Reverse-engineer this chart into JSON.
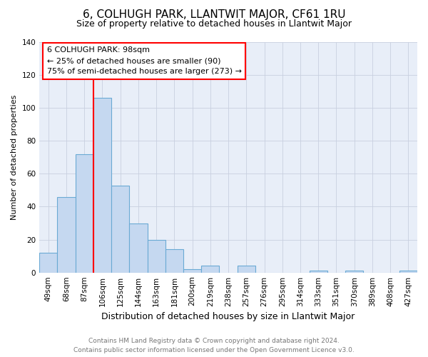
{
  "title": "6, COLHUGH PARK, LLANTWIT MAJOR, CF61 1RU",
  "subtitle": "Size of property relative to detached houses in Llantwit Major",
  "xlabel": "Distribution of detached houses by size in Llantwit Major",
  "ylabel": "Number of detached properties",
  "categories": [
    "49sqm",
    "68sqm",
    "87sqm",
    "106sqm",
    "125sqm",
    "144sqm",
    "163sqm",
    "181sqm",
    "200sqm",
    "219sqm",
    "238sqm",
    "257sqm",
    "276sqm",
    "295sqm",
    "314sqm",
    "333sqm",
    "351sqm",
    "370sqm",
    "389sqm",
    "408sqm",
    "427sqm"
  ],
  "values": [
    12,
    46,
    72,
    106,
    53,
    30,
    20,
    14,
    2,
    4,
    0,
    4,
    0,
    0,
    0,
    1,
    0,
    1,
    0,
    0,
    1
  ],
  "bar_color": "#c5d8f0",
  "bar_edge_color": "#6aaad4",
  "annotation_line1": "6 COLHUGH PARK: 98sqm",
  "annotation_line2": "← 25% of detached houses are smaller (90)",
  "annotation_line3": "75% of semi-detached houses are larger (273) →",
  "footer_line1": "Contains HM Land Registry data © Crown copyright and database right 2024.",
  "footer_line2": "Contains public sector information licensed under the Open Government Licence v3.0.",
  "ylim": [
    0,
    140
  ],
  "yticks": [
    0,
    20,
    40,
    60,
    80,
    100,
    120,
    140
  ],
  "plot_bg_color": "#e8eef8",
  "fig_bg_color": "#ffffff",
  "grid_color": "#c8d0e0",
  "title_fontsize": 11,
  "subtitle_fontsize": 9,
  "xlabel_fontsize": 9,
  "ylabel_fontsize": 8,
  "tick_fontsize": 7.5,
  "annotation_fontsize": 8,
  "red_line_index": 3
}
